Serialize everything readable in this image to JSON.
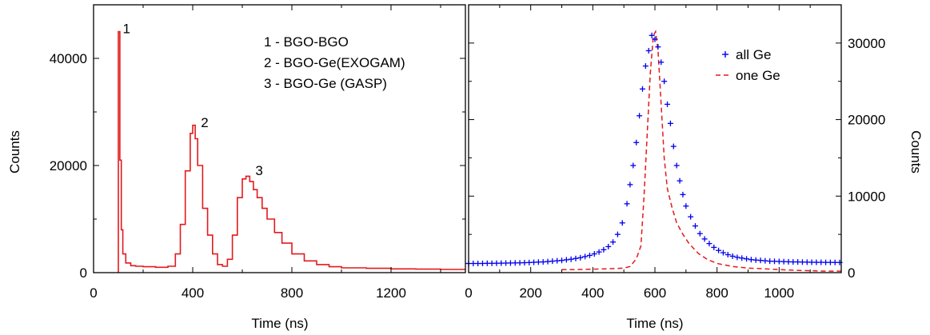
{
  "chart_data": [
    {
      "type": "line",
      "title": "",
      "xlabel": "Time (ns)",
      "ylabel": "Counts",
      "xlim": [
        0,
        1500
      ],
      "ylim": [
        0,
        50000
      ],
      "x_ticks": [
        0,
        400,
        800,
        1200
      ],
      "y_ticks": [
        0,
        20000,
        40000
      ],
      "grid": false,
      "color": "#e31a1c",
      "series": [
        {
          "x": [
            100,
            106,
            112,
            118,
            130,
            150,
            170,
            200,
            250,
            300,
            330,
            350,
            370,
            390,
            400,
            410,
            420,
            440,
            460,
            480,
            500,
            520,
            540,
            560,
            580,
            600,
            615,
            630,
            645,
            660,
            680,
            700,
            730,
            760,
            800,
            850,
            900,
            950,
            1000,
            1100,
            1200,
            1300,
            1400,
            1500
          ],
          "y": [
            45000,
            21000,
            8000,
            3500,
            1800,
            1300,
            1200,
            1100,
            1000,
            1200,
            3500,
            9000,
            19000,
            26000,
            27500,
            25000,
            20000,
            12000,
            7000,
            3500,
            1500,
            1200,
            2500,
            7000,
            14000,
            17500,
            18000,
            17000,
            15500,
            14000,
            12000,
            10000,
            7500,
            5500,
            3500,
            2200,
            1500,
            1100,
            900,
            800,
            700,
            650,
            600,
            600
          ]
        }
      ],
      "annotations": [
        {
          "text": "1",
          "x": 105,
          "y": 45000
        },
        {
          "text": "2",
          "x": 420,
          "y": 27500
        },
        {
          "text": "3",
          "x": 640,
          "y": 18500
        }
      ],
      "legend_lines": [
        "1 - BGO-BGO",
        "2 - BGO-Ge(EXOGAM)",
        "3 - BGO-Ge (GASP)"
      ]
    },
    {
      "type": "scatter",
      "title": "",
      "xlabel": "Time (ns)",
      "ylabel": "Counts",
      "xlim": [
        0,
        1200
      ],
      "ylim": [
        0,
        35000
      ],
      "x_ticks": [
        0,
        200,
        400,
        600,
        800,
        1000
      ],
      "y_ticks": [
        0,
        10000,
        20000,
        30000
      ],
      "grid": false,
      "legend": "top-right",
      "series": [
        {
          "name": "all Ge",
          "style": "plus",
          "color": "#0000ee",
          "x": [
            0,
            15,
            30,
            45,
            60,
            75,
            90,
            105,
            120,
            135,
            150,
            165,
            180,
            195,
            210,
            225,
            240,
            255,
            270,
            285,
            300,
            315,
            330,
            345,
            360,
            375,
            390,
            405,
            420,
            435,
            450,
            465,
            480,
            495,
            510,
            520,
            530,
            540,
            550,
            560,
            570,
            580,
            590,
            600,
            610,
            620,
            630,
            640,
            650,
            660,
            670,
            680,
            690,
            700,
            715,
            730,
            745,
            760,
            775,
            790,
            805,
            820,
            835,
            850,
            865,
            880,
            895,
            910,
            925,
            940,
            955,
            970,
            985,
            1000,
            1015,
            1030,
            1045,
            1060,
            1075,
            1090,
            1105,
            1120,
            1135,
            1150,
            1165,
            1180,
            1195
          ],
          "y": [
            1200,
            1200,
            1200,
            1200,
            1220,
            1220,
            1230,
            1240,
            1250,
            1260,
            1270,
            1280,
            1300,
            1320,
            1350,
            1380,
            1400,
            1450,
            1500,
            1550,
            1600,
            1680,
            1750,
            1850,
            1950,
            2100,
            2250,
            2450,
            2700,
            3000,
            3400,
            4000,
            5000,
            6500,
            9000,
            11500,
            14000,
            17000,
            20500,
            24000,
            27000,
            29000,
            31000,
            30500,
            29500,
            27500,
            25000,
            22000,
            19500,
            16500,
            14000,
            12000,
            10200,
            8700,
            7300,
            6100,
            5100,
            4400,
            3800,
            3300,
            2900,
            2600,
            2350,
            2150,
            2000,
            1900,
            1800,
            1700,
            1650,
            1600,
            1550,
            1500,
            1480,
            1460,
            1440,
            1420,
            1400,
            1400,
            1380,
            1370,
            1360,
            1350,
            1350,
            1340,
            1340,
            1330,
            1330
          ]
        },
        {
          "name": "one Ge",
          "style": "dashed",
          "color": "#e31a1c",
          "x": [
            300,
            350,
            400,
            450,
            480,
            500,
            520,
            540,
            555,
            565,
            575,
            585,
            595,
            602,
            610,
            620,
            630,
            640,
            655,
            670,
            690,
            710,
            740,
            770,
            800,
            850,
            900,
            950,
            1000,
            1050,
            1100,
            1150,
            1200
          ],
          "y": [
            400,
            400,
            450,
            500,
            550,
            600,
            800,
            1800,
            3500,
            10000,
            18000,
            26000,
            31000,
            31500,
            29000,
            22000,
            15000,
            11000,
            8500,
            6500,
            5000,
            3800,
            2500,
            1700,
            1200,
            800,
            600,
            500,
            400,
            300,
            250,
            200,
            200
          ]
        }
      ]
    }
  ]
}
